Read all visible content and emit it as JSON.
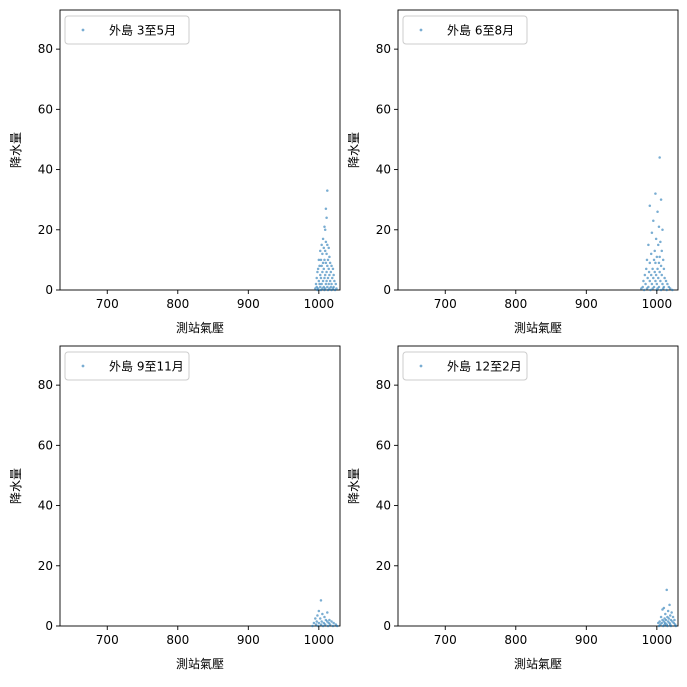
{
  "chart_data": [
    {
      "type": "scatter",
      "xlabel": "測站氣壓",
      "ylabel": "降水量",
      "xlim": [
        633,
        1030
      ],
      "ylim": [
        0,
        93
      ],
      "xticks": [
        700,
        800,
        900,
        1000
      ],
      "xtick_labels": [
        "700",
        "800",
        "900",
        "1000"
      ],
      "yticks": [
        0,
        20,
        40,
        60,
        80
      ],
      "ytick_labels": [
        "0",
        "20",
        "40",
        "60",
        "80"
      ],
      "legend": "upper-left",
      "grid": false,
      "series": [
        {
          "name": "外島 3至5月",
          "color": "#1f77b4",
          "points": [
            [
              1012,
              33
            ],
            [
              1010,
              27
            ],
            [
              1011,
              24
            ],
            [
              1008,
              21
            ],
            [
              1009,
              20
            ],
            [
              1006,
              17
            ],
            [
              1010,
              16
            ],
            [
              1004,
              15
            ],
            [
              1012,
              15
            ],
            [
              1007,
              14
            ],
            [
              1014,
              14
            ],
            [
              1002,
              13
            ],
            [
              1009,
              13
            ],
            [
              1005,
              12
            ],
            [
              1011,
              12
            ],
            [
              1015,
              11
            ],
            [
              1000,
              10
            ],
            [
              1003,
              10
            ],
            [
              1008,
              10
            ],
            [
              1013,
              10
            ],
            [
              1006,
              9
            ],
            [
              1010,
              9
            ],
            [
              1016,
              9
            ],
            [
              1001,
              8
            ],
            [
              1004,
              8
            ],
            [
              1012,
              8
            ],
            [
              1018,
              8
            ],
            [
              999,
              7
            ],
            [
              1007,
              7
            ],
            [
              1014,
              7
            ],
            [
              1020,
              7
            ],
            [
              998,
              6
            ],
            [
              1005,
              6
            ],
            [
              1011,
              6
            ],
            [
              1017,
              6
            ],
            [
              1002,
              5
            ],
            [
              1009,
              5
            ],
            [
              1015,
              5
            ],
            [
              1021,
              5
            ],
            [
              997,
              4
            ],
            [
              1003,
              4
            ],
            [
              1008,
              4
            ],
            [
              1013,
              4
            ],
            [
              1019,
              4
            ],
            [
              1000,
              3
            ],
            [
              1006,
              3
            ],
            [
              1011,
              3
            ],
            [
              1016,
              3
            ],
            [
              1022,
              3
            ],
            [
              996,
              2
            ],
            [
              1001,
              2
            ],
            [
              1004,
              2
            ],
            [
              1010,
              2
            ],
            [
              1014,
              2
            ],
            [
              1018,
              2
            ],
            [
              1024,
              2
            ],
            [
              997,
              1
            ],
            [
              1002,
              1
            ],
            [
              1007,
              1
            ],
            [
              1012,
              1
            ],
            [
              1017,
              1
            ],
            [
              1021,
              1
            ],
            [
              995,
              0.5
            ],
            [
              999,
              0.5
            ],
            [
              1005,
              0.5
            ],
            [
              1009,
              0.5
            ],
            [
              1015,
              0.5
            ],
            [
              1020,
              0.5
            ],
            [
              1025,
              0.5
            ],
            [
              998,
              0
            ],
            [
              1003,
              0
            ],
            [
              1008,
              0
            ],
            [
              1013,
              0
            ],
            [
              1018,
              0
            ],
            [
              1023,
              0
            ]
          ]
        }
      ]
    },
    {
      "type": "scatter",
      "xlabel": "測站氣壓",
      "ylabel": "降水量",
      "xlim": [
        633,
        1030
      ],
      "ylim": [
        0,
        93
      ],
      "xticks": [
        700,
        800,
        900,
        1000
      ],
      "xtick_labels": [
        "700",
        "800",
        "900",
        "1000"
      ],
      "yticks": [
        0,
        20,
        40,
        60,
        80
      ],
      "ytick_labels": [
        "0",
        "20",
        "40",
        "60",
        "80"
      ],
      "legend": "upper-left",
      "grid": false,
      "series": [
        {
          "name": "外島 6至8月",
          "color": "#1f77b4",
          "points": [
            [
              1004,
              44
            ],
            [
              998,
              32
            ],
            [
              1006,
              30
            ],
            [
              990,
              28
            ],
            [
              1001,
              26
            ],
            [
              995,
              23
            ],
            [
              1003,
              21
            ],
            [
              1008,
              20
            ],
            [
              993,
              19
            ],
            [
              999,
              17
            ],
            [
              1005,
              16
            ],
            [
              988,
              15
            ],
            [
              1002,
              15
            ],
            [
              997,
              13
            ],
            [
              1007,
              13
            ],
            [
              992,
              12
            ],
            [
              1000,
              11
            ],
            [
              1004,
              11
            ],
            [
              986,
              10
            ],
            [
              996,
              10
            ],
            [
              1009,
              10
            ],
            [
              990,
              9
            ],
            [
              998,
              9
            ],
            [
              1003,
              9
            ],
            [
              1006,
              8
            ],
            [
              985,
              7
            ],
            [
              994,
              7
            ],
            [
              1001,
              7
            ],
            [
              1010,
              7
            ],
            [
              989,
              6
            ],
            [
              997,
              6
            ],
            [
              1004,
              6
            ],
            [
              983,
              5
            ],
            [
              992,
              5
            ],
            [
              999,
              5
            ],
            [
              1007,
              5
            ],
            [
              987,
              4
            ],
            [
              995,
              4
            ],
            [
              1002,
              4
            ],
            [
              1011,
              4
            ],
            [
              981,
              3
            ],
            [
              990,
              3
            ],
            [
              998,
              3
            ],
            [
              1005,
              3
            ],
            [
              1013,
              3
            ],
            [
              984,
              2
            ],
            [
              993,
              2
            ],
            [
              1000,
              2
            ],
            [
              1008,
              2
            ],
            [
              1015,
              2
            ],
            [
              980,
              1
            ],
            [
              988,
              1
            ],
            [
              996,
              1
            ],
            [
              1003,
              1
            ],
            [
              1010,
              1
            ],
            [
              1017,
              1
            ],
            [
              978,
              0.5
            ],
            [
              986,
              0.5
            ],
            [
              994,
              0.5
            ],
            [
              1001,
              0.5
            ],
            [
              1009,
              0.5
            ],
            [
              1019,
              0.5
            ],
            [
              982,
              0
            ],
            [
              991,
              0
            ],
            [
              1000,
              0
            ],
            [
              1006,
              0
            ],
            [
              1014,
              0
            ],
            [
              1022,
              0
            ]
          ]
        }
      ]
    },
    {
      "type": "scatter",
      "xlabel": "測站氣壓",
      "ylabel": "降水量",
      "xlim": [
        633,
        1030
      ],
      "ylim": [
        0,
        93
      ],
      "xticks": [
        700,
        800,
        900,
        1000
      ],
      "xtick_labels": [
        "700",
        "800",
        "900",
        "1000"
      ],
      "yticks": [
        0,
        20,
        40,
        60,
        80
      ],
      "ytick_labels": [
        "0",
        "20",
        "40",
        "60",
        "80"
      ],
      "legend": "upper-left",
      "grid": false,
      "series": [
        {
          "name": "外島 9至11月",
          "color": "#1f77b4",
          "points": [
            [
              1003,
              8.5
            ],
            [
              1000,
              5
            ],
            [
              1012,
              4.5
            ],
            [
              1005,
              4
            ],
            [
              998,
              3.5
            ],
            [
              1008,
              3
            ],
            [
              995,
              2.5
            ],
            [
              1002,
              2.5
            ],
            [
              1010,
              2
            ],
            [
              1015,
              2
            ],
            [
              997,
              1.5
            ],
            [
              1004,
              1.5
            ],
            [
              1012,
              1.5
            ],
            [
              1018,
              1.5
            ],
            [
              993,
              1
            ],
            [
              1000,
              1
            ],
            [
              1007,
              1
            ],
            [
              1014,
              1
            ],
            [
              1021,
              1
            ],
            [
              996,
              0.5
            ],
            [
              1003,
              0.5
            ],
            [
              1009,
              0.5
            ],
            [
              1016,
              0.5
            ],
            [
              1024,
              0.5
            ],
            [
              991,
              0
            ],
            [
              999,
              0
            ],
            [
              1006,
              0
            ],
            [
              1013,
              0
            ],
            [
              1020,
              0
            ],
            [
              1026,
              0
            ]
          ]
        }
      ]
    },
    {
      "type": "scatter",
      "xlabel": "測站氣壓",
      "ylabel": "降水量",
      "xlim": [
        633,
        1030
      ],
      "ylim": [
        0,
        93
      ],
      "xticks": [
        700,
        800,
        900,
        1000
      ],
      "xtick_labels": [
        "700",
        "800",
        "900",
        "1000"
      ],
      "yticks": [
        0,
        20,
        40,
        60,
        80
      ],
      "ytick_labels": [
        "0",
        "20",
        "40",
        "60",
        "80"
      ],
      "legend": "upper-left",
      "grid": false,
      "series": [
        {
          "name": "外島 12至2月",
          "color": "#1f77b4",
          "points": [
            [
              1014,
              12
            ],
            [
              1018,
              7
            ],
            [
              1010,
              6
            ],
            [
              1008,
              5.5
            ],
            [
              1016,
              5
            ],
            [
              1021,
              4.5
            ],
            [
              1012,
              4
            ],
            [
              1019,
              3.5
            ],
            [
              1006,
              3
            ],
            [
              1015,
              3
            ],
            [
              1023,
              3
            ],
            [
              1011,
              2.5
            ],
            [
              1017,
              2.5
            ],
            [
              1008,
              2
            ],
            [
              1013,
              2
            ],
            [
              1020,
              2
            ],
            [
              1025,
              2
            ],
            [
              1004,
              1.5
            ],
            [
              1010,
              1.5
            ],
            [
              1016,
              1.5
            ],
            [
              1022,
              1.5
            ],
            [
              1002,
              1
            ],
            [
              1007,
              1
            ],
            [
              1012,
              1
            ],
            [
              1018,
              1
            ],
            [
              1024,
              1
            ],
            [
              1005,
              0.5
            ],
            [
              1011,
              0.5
            ],
            [
              1014,
              0.5
            ],
            [
              1019,
              0.5
            ],
            [
              1026,
              0.5
            ],
            [
              1003,
              0
            ],
            [
              1009,
              0
            ],
            [
              1015,
              0
            ],
            [
              1020,
              0
            ],
            [
              1027,
              0
            ]
          ]
        }
      ]
    }
  ]
}
